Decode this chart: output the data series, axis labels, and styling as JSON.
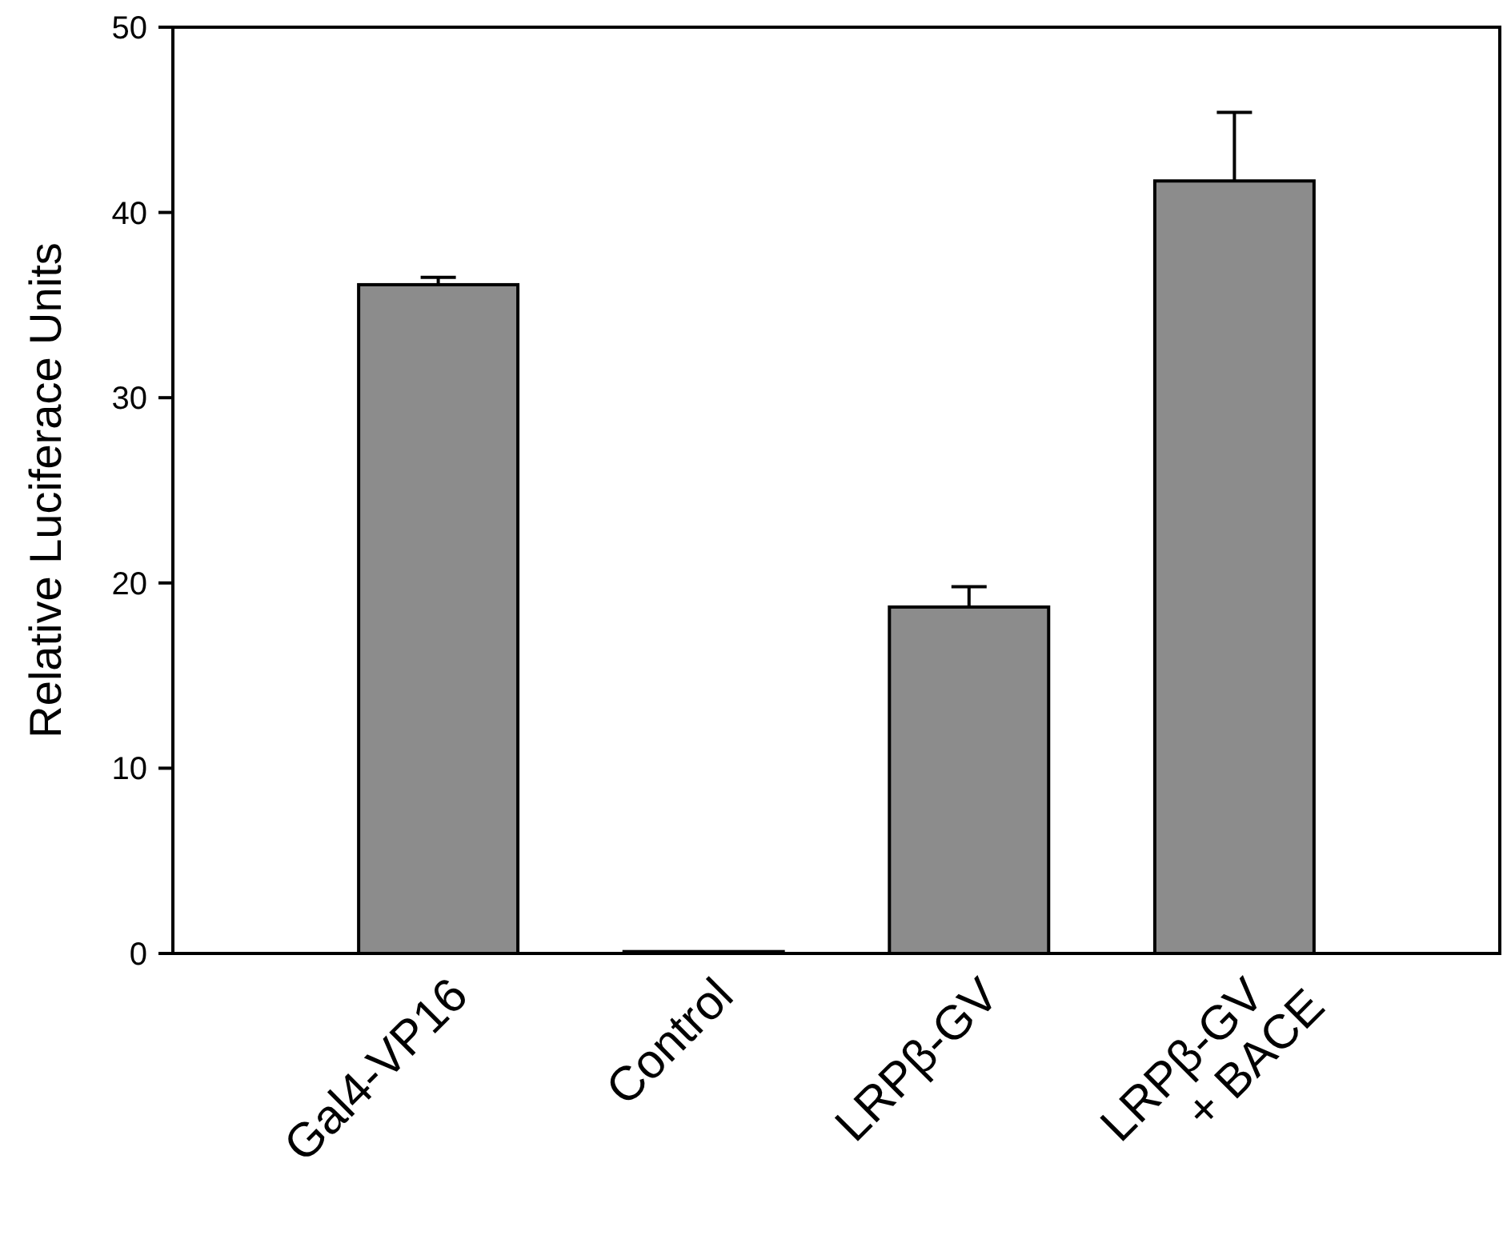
{
  "chart_data": {
    "type": "bar",
    "ylabel": "Relative Luciferace Units",
    "categories": [
      "Gal4-VP16",
      "Control",
      "LRPβ-GV",
      "LRPβ-GV\n+ BACE"
    ],
    "values": [
      36.1,
      0.1,
      18.7,
      41.7
    ],
    "errors": [
      [
        36.1,
        36.5
      ],
      null,
      [
        18.7,
        19.8
      ],
      [
        41.7,
        45.4
      ]
    ],
    "color": "#8c8c8c",
    "ylim": [
      0,
      50
    ],
    "yticks": [
      0,
      10,
      20,
      30,
      40,
      50
    ]
  }
}
